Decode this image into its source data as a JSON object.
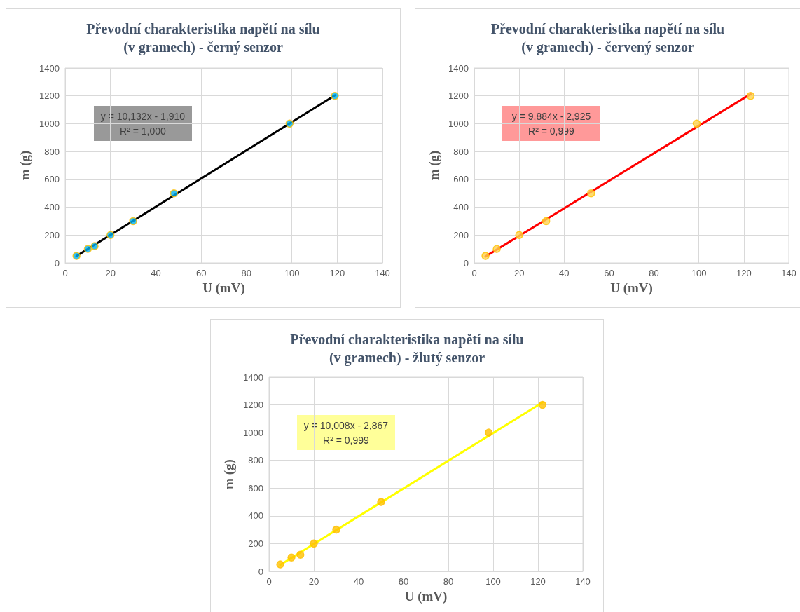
{
  "chart_data": [
    {
      "type": "scatter",
      "title": "Převodní charakteristika napětí na sílu\n(v gramech) - černý senzor",
      "xlabel": "U (mV)",
      "ylabel": "m (g)",
      "series": [
        {
          "color": "#00b0f0",
          "x": [
            5,
            10,
            13,
            20,
            30,
            48,
            99,
            119
          ],
          "values": [
            50,
            100,
            120,
            200,
            300,
            500,
            1000,
            1200
          ]
        },
        {
          "type": "line",
          "color": "#000000",
          "marker": "none",
          "line_style": "solid",
          "x": [
            5,
            119
          ],
          "values": [
            49,
            1204
          ]
        }
      ],
      "annotations": [
        "y = 10,132x - 1,910",
        "R² = 1,000"
      ],
      "xlim": [
        0,
        140
      ],
      "xticks": [
        0,
        20,
        40,
        60,
        80,
        100,
        120,
        140
      ],
      "ylim": [
        0,
        1400
      ],
      "yticks": [
        0,
        200,
        400,
        600,
        800,
        1000,
        1200,
        1400
      ],
      "grid": true,
      "marker": "circle"
    },
    {
      "type": "scatter",
      "title": "Převodní charakteristika napětí na sílu\n(v gramech) - červený senzor",
      "xlabel": "U (mV)",
      "ylabel": "m (g)",
      "series": [
        {
          "color": "#ffd34d",
          "x": [
            5,
            10,
            20,
            32,
            52,
            99,
            123
          ],
          "values": [
            50,
            100,
            200,
            300,
            500,
            1000,
            1200
          ]
        },
        {
          "type": "line",
          "color": "#ff0000",
          "marker": "none",
          "line_style": "solid",
          "x": [
            5,
            123
          ],
          "values": [
            46,
            1213
          ]
        }
      ],
      "annotations": [
        "y = 9,884x - 2,925",
        "R² = 0,999"
      ],
      "xlim": [
        0,
        140
      ],
      "xticks": [
        0,
        20,
        40,
        60,
        80,
        100,
        120,
        140
      ],
      "ylim": [
        0,
        1400
      ],
      "yticks": [
        0,
        200,
        400,
        600,
        800,
        1000,
        1200,
        1400
      ],
      "grid": true,
      "marker": "circle"
    },
    {
      "type": "scatter",
      "title": "Převodní charakteristika napětí na sílu\n(v gramech) - žlutý senzor",
      "xlabel": "U (mV)",
      "ylabel": "m (g)",
      "series": [
        {
          "color": "#ffc000",
          "x": [
            5,
            10,
            14,
            20,
            30,
            50,
            98,
            122
          ],
          "values": [
            50,
            100,
            120,
            200,
            300,
            500,
            1000,
            1200
          ]
        },
        {
          "type": "line",
          "color": "#ffff00",
          "marker": "none",
          "line_style": "solid",
          "x": [
            5,
            122
          ],
          "values": [
            47,
            1218
          ]
        }
      ],
      "annotations": [
        "y = 10,008x - 2,867",
        "R² = 0,999"
      ],
      "xlim": [
        0,
        140
      ],
      "xticks": [
        0,
        20,
        40,
        60,
        80,
        100,
        120,
        140
      ],
      "ylim": [
        0,
        1400
      ],
      "yticks": [
        0,
        200,
        400,
        600,
        800,
        1000,
        1200,
        1400
      ],
      "grid": true,
      "marker": "circle"
    }
  ]
}
